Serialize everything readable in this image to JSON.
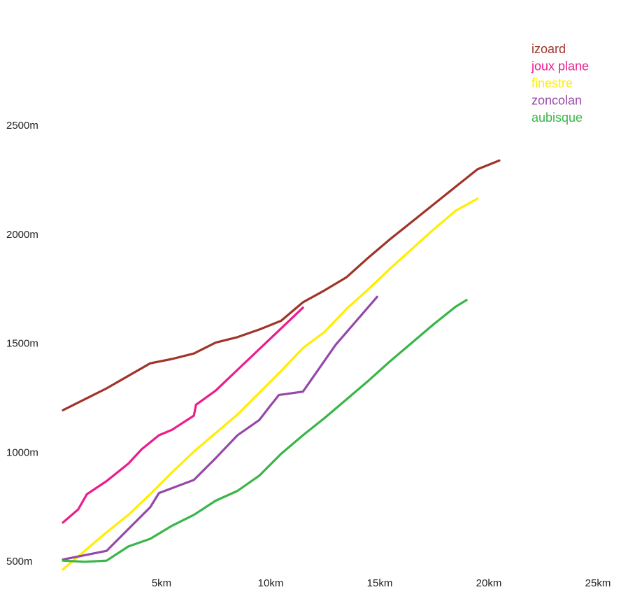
{
  "chart_data": {
    "type": "line",
    "title": "",
    "xlabel": "",
    "ylabel": "",
    "xlim": [
      0,
      25
    ],
    "ylim": [
      0,
      2500
    ],
    "x_ticks": [
      {
        "value": 5,
        "label": "5km"
      },
      {
        "value": 10,
        "label": "10km"
      },
      {
        "value": 15,
        "label": "15km"
      },
      {
        "value": 20,
        "label": "20km"
      },
      {
        "value": 25,
        "label": "25km"
      }
    ],
    "y_ticks": [
      {
        "value": 500,
        "label": "500m"
      },
      {
        "value": 1000,
        "label": "1000m"
      },
      {
        "value": 1500,
        "label": "1500m"
      },
      {
        "value": 2000,
        "label": "2000m"
      },
      {
        "value": 2500,
        "label": "2500m"
      }
    ],
    "grid": false,
    "legend_position": "top-right",
    "series": [
      {
        "name": "izoard",
        "color": "#a0342a",
        "points": [
          [
            0,
            1190
          ],
          [
            2,
            1290
          ],
          [
            4,
            1405
          ],
          [
            5,
            1425
          ],
          [
            6,
            1450
          ],
          [
            7,
            1500
          ],
          [
            8,
            1525
          ],
          [
            9,
            1560
          ],
          [
            10,
            1600
          ],
          [
            11,
            1685
          ],
          [
            12,
            1740
          ],
          [
            13,
            1800
          ],
          [
            14,
            1890
          ],
          [
            15,
            1975
          ],
          [
            16,
            2055
          ],
          [
            17,
            2135
          ],
          [
            18,
            2215
          ],
          [
            19,
            2295
          ],
          [
            20,
            2335
          ]
        ]
      },
      {
        "name": "joux plane",
        "color": "#ec1c8c",
        "points": [
          [
            0,
            675
          ],
          [
            0.7,
            735
          ],
          [
            1.1,
            805
          ],
          [
            2,
            865
          ],
          [
            3,
            945
          ],
          [
            3.6,
            1010
          ],
          [
            4.4,
            1075
          ],
          [
            5,
            1100
          ],
          [
            6,
            1165
          ],
          [
            6.1,
            1215
          ],
          [
            7,
            1280
          ],
          [
            8,
            1375
          ],
          [
            9,
            1470
          ],
          [
            10,
            1565
          ],
          [
            11,
            1660
          ]
        ]
      },
      {
        "name": "finestre",
        "color": "#ffee00",
        "points": [
          [
            0,
            460
          ],
          [
            1,
            545
          ],
          [
            2,
            630
          ],
          [
            3,
            710
          ],
          [
            4,
            805
          ],
          [
            5,
            905
          ],
          [
            6,
            1000
          ],
          [
            7,
            1085
          ],
          [
            8,
            1170
          ],
          [
            9,
            1270
          ],
          [
            10,
            1370
          ],
          [
            11,
            1475
          ],
          [
            12,
            1550
          ],
          [
            13,
            1655
          ],
          [
            14,
            1745
          ],
          [
            15,
            1840
          ],
          [
            16,
            1930
          ],
          [
            17,
            2020
          ],
          [
            18,
            2105
          ],
          [
            19,
            2160
          ]
        ]
      },
      {
        "name": "zoncolan",
        "color": "#9648a8",
        "points": [
          [
            0,
            505
          ],
          [
            1,
            525
          ],
          [
            2,
            545
          ],
          [
            3,
            645
          ],
          [
            4,
            745
          ],
          [
            4.4,
            810
          ],
          [
            6,
            870
          ],
          [
            7,
            970
          ],
          [
            8,
            1075
          ],
          [
            9,
            1145
          ],
          [
            9.5,
            1210
          ],
          [
            9.9,
            1260
          ],
          [
            11,
            1275
          ],
          [
            12.5,
            1490
          ],
          [
            14.4,
            1710
          ]
        ]
      },
      {
        "name": "aubisque",
        "color": "#3ab54a",
        "points": [
          [
            0,
            500
          ],
          [
            1,
            495
          ],
          [
            2,
            500
          ],
          [
            3,
            565
          ],
          [
            4,
            600
          ],
          [
            5,
            660
          ],
          [
            6,
            710
          ],
          [
            7,
            775
          ],
          [
            8,
            820
          ],
          [
            9,
            890
          ],
          [
            10,
            990
          ],
          [
            11,
            1075
          ],
          [
            12,
            1155
          ],
          [
            13,
            1240
          ],
          [
            14,
            1325
          ],
          [
            15,
            1415
          ],
          [
            16,
            1500
          ],
          [
            17,
            1585
          ],
          [
            18,
            1665
          ],
          [
            18.5,
            1695
          ]
        ]
      }
    ]
  }
}
